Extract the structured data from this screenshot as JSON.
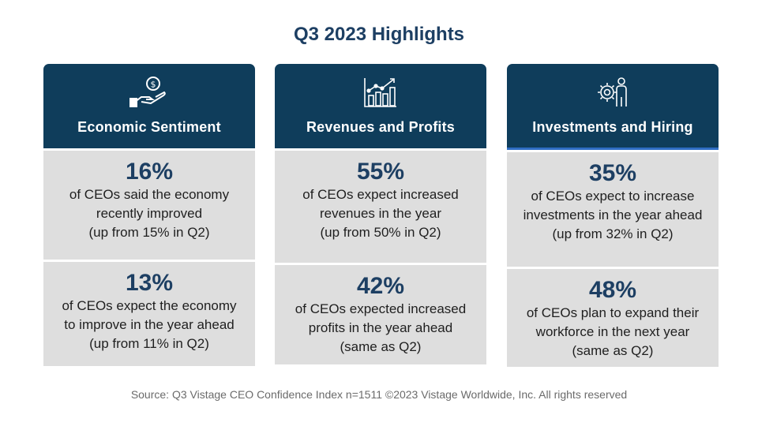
{
  "title": "Q3 2023 Highlights",
  "columns": [
    {
      "icon": "money-hand-icon",
      "heading": "Economic Sentiment",
      "stats": [
        {
          "value": "16%",
          "lines": [
            "of CEOs said the economy",
            "recently improved",
            "(up from 15% in Q2)"
          ]
        },
        {
          "value": "13%",
          "lines": [
            "of CEOs expect the economy",
            "to improve in the year ahead",
            "(up from 11% in Q2)"
          ]
        }
      ]
    },
    {
      "icon": "growth-chart-icon",
      "heading": "Revenues and Profits",
      "stats": [
        {
          "value": "55%",
          "lines": [
            "of CEOs expect increased",
            "revenues in the year",
            "(up from 50% in Q2)"
          ]
        },
        {
          "value": "42%",
          "lines": [
            "of CEOs expected increased",
            "profits in the year ahead",
            "(same as Q2)"
          ]
        }
      ]
    },
    {
      "icon": "gear-person-icon",
      "heading": "Investments and Hiring",
      "stats": [
        {
          "value": "35%",
          "lines": [
            "of CEOs expect to increase",
            "investments in the year ahead",
            "(up from 32% in Q2)"
          ]
        },
        {
          "value": "48%",
          "lines": [
            "of CEOs plan to expand their",
            "workforce in the next year",
            "(same as Q2)"
          ]
        }
      ]
    }
  ],
  "footer": "Source: Q3 Vistage CEO Confidence Index n=1511 ©2023 Vistage Worldwide, Inc. All rights reserved",
  "colors": {
    "header_bg": "#0f3d5b",
    "panel_bg": "#dedede",
    "accent_text": "#1d3f63"
  }
}
